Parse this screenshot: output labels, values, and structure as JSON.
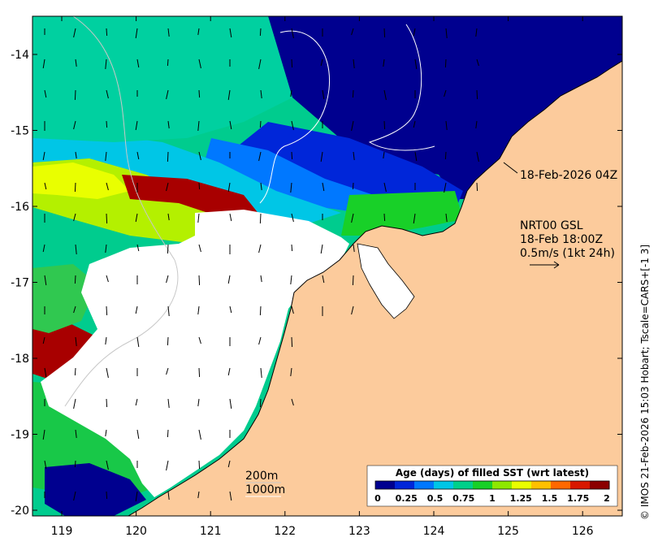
{
  "map": {
    "x_ticks": [
      "119",
      "120",
      "121",
      "122",
      "123",
      "124",
      "125",
      "126"
    ],
    "y_ticks": [
      "-14",
      "-15",
      "-16",
      "-17",
      "-18",
      "-19",
      "-20"
    ],
    "colors": {
      "land": "#fccb9c",
      "no_data": "#ffffff",
      "coast": "#000000",
      "isobath": "#c8c8c8"
    }
  },
  "annotations": {
    "image_time": "18-Feb-2026 04Z",
    "product": "NRT00 GSL",
    "current_time": "18-Feb 18:00Z",
    "scale_vector": "0.5m/s (1kt 24h)",
    "isobath_200": "200m",
    "isobath_1000": "1000m",
    "credit": "© IMOS 21-Feb-2026 15:03 Hobart; Tscale=CARS+[-1 3]"
  },
  "colorbar": {
    "title": "Age (days) of filled SST (wrt latest)",
    "ticks": [
      "0",
      "0.25",
      "0.5",
      "0.75",
      "1",
      "1.25",
      "1.5",
      "1.75",
      "2"
    ],
    "range": [
      0,
      2
    ],
    "colors": [
      "#00008f",
      "#0026d9",
      "#0078ff",
      "#00c6e6",
      "#00d08a",
      "#18d028",
      "#8ee800",
      "#e9ff00",
      "#ffc000",
      "#ff6800",
      "#d81800",
      "#8b0000"
    ]
  }
}
